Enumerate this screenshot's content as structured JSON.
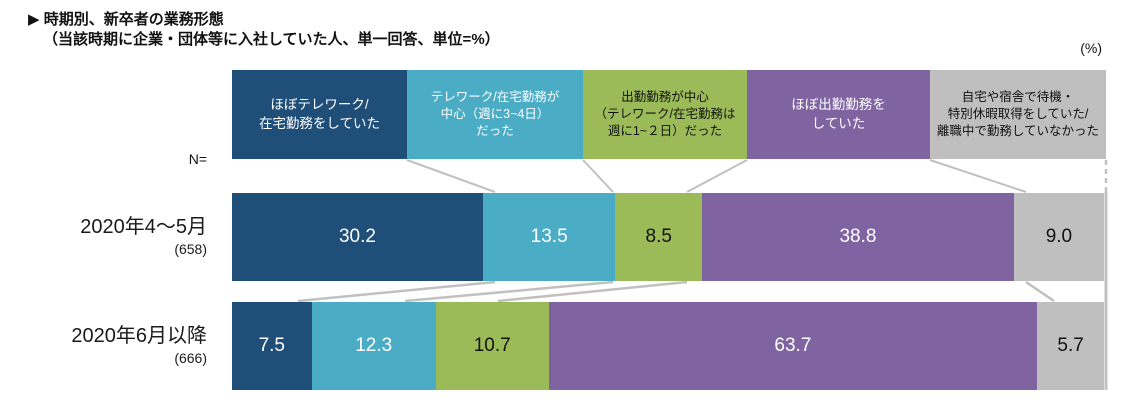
{
  "header": {
    "title_line1": "▶ 時期別、新卒者の業務形態",
    "title_line2": "（当該時期に企業・団体等に入社していた人、単一回答、単位=%）",
    "unit_label": "(%)",
    "n_label": "N="
  },
  "chart_data": {
    "type": "bar",
    "stacked": true,
    "orientation": "horizontal",
    "unit": "%",
    "xlim": [
      0,
      100
    ],
    "legend_position": "top",
    "categories": [
      {
        "label": "2020年4～5月",
        "n": "(658)"
      },
      {
        "label": "2020年6月以降",
        "n": "(666)"
      }
    ],
    "series": [
      {
        "name": "ほぼテレワーク/在宅勤務をしていた",
        "label_lines": [
          "ほぼテレワーク/",
          "在宅勤務をしていた"
        ],
        "color": "#1F4E79",
        "label_text_color": "#ffffff",
        "value_text_color": "#ffffff",
        "values": [
          30.2,
          7.5
        ]
      },
      {
        "name": "テレワーク/在宅勤務が中心（週に3~4日）だった",
        "label_lines": [
          "テレワーク/在宅勤務が",
          "中心（週に3~4日）",
          "だった"
        ],
        "color": "#4BACC6",
        "label_text_color": "#ffffff",
        "value_text_color": "#ffffff",
        "values": [
          13.5,
          12.3
        ]
      },
      {
        "name": "出勤勤務が中心（テレワーク/在宅勤務は週に1~２日）だった",
        "label_lines": [
          "出勤勤務が中心",
          "（テレワーク/在宅勤務は",
          "週に1~２日）だった"
        ],
        "color": "#9BBB59",
        "label_text_color": "#111111",
        "value_text_color": "#111111",
        "values": [
          8.5,
          10.7
        ]
      },
      {
        "name": "ほぼ出勤勤務をしていた",
        "label_lines": [
          "ほぼ出勤勤務を",
          "していた"
        ],
        "color": "#8064A2",
        "label_text_color": "#ffffff",
        "value_text_color": "#ffffff",
        "values": [
          38.8,
          63.7
        ]
      },
      {
        "name": "自宅や宿舎で待機・特別休暇取得をしていた/離職中で勤務していなかった",
        "label_lines": [
          "自宅や宿舎で待機・",
          "特別休暇取得をしていた/",
          "離職中で勤務していなかった"
        ],
        "color": "#BFBFBF",
        "label_text_color": "#111111",
        "value_text_color": "#111111",
        "values": [
          9.0,
          5.7
        ]
      }
    ]
  }
}
